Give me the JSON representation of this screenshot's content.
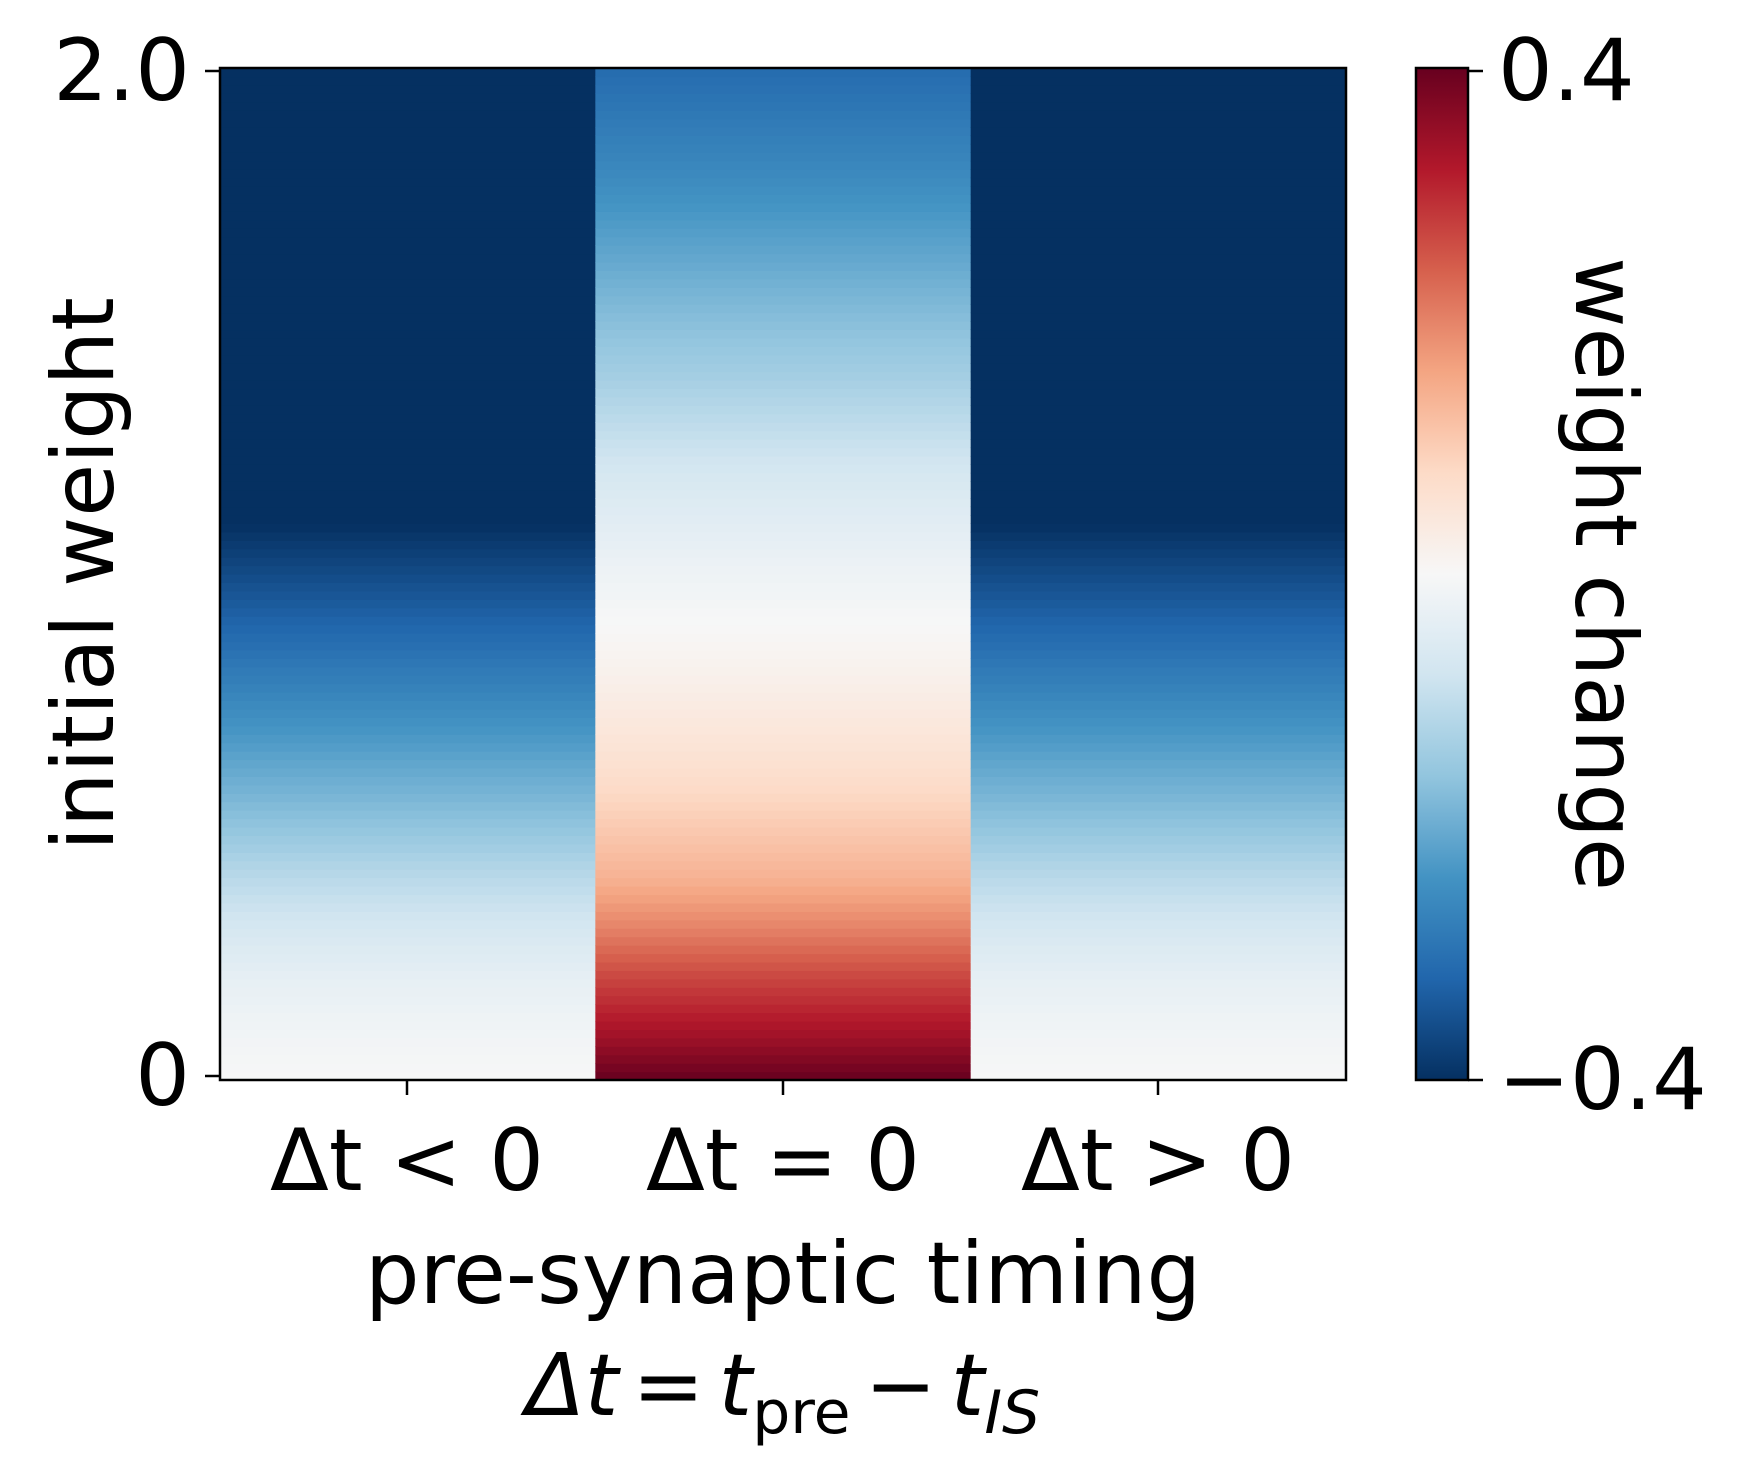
{
  "chart_data": {
    "type": "heatmap",
    "colormap": "RdBu_r",
    "x_categories": [
      "Δt < 0",
      "Δt = 0",
      "Δt > 0"
    ],
    "y_ticks": [
      "0",
      "2.0"
    ],
    "ylim": [
      0,
      2.0
    ],
    "xlabel_line1": "pre-synaptic timing",
    "xlabel_line2": {
      "lhs": "Δt",
      "eq": "=",
      "t1": "t",
      "sub1": "pre",
      "minus": "−",
      "t2": "t",
      "sub2": "IS"
    },
    "ylabel": "initial weight",
    "colorbar": {
      "label": "weight change",
      "min": -0.4,
      "max": 0.4,
      "tick_min_label": "−0.4",
      "tick_max_label": "0.4"
    },
    "columns": [
      {
        "category": "Δt < 0",
        "profile": [
          {
            "w": 0.0,
            "v": 0.0
          },
          {
            "w": 0.1,
            "v": -0.015
          },
          {
            "w": 0.2,
            "v": -0.035
          },
          {
            "w": 0.3,
            "v": -0.07
          },
          {
            "w": 0.4,
            "v": -0.11
          },
          {
            "w": 0.5,
            "v": -0.16
          },
          {
            "w": 0.6,
            "v": -0.2
          },
          {
            "w": 0.7,
            "v": -0.24
          },
          {
            "w": 0.8,
            "v": -0.28
          },
          {
            "w": 0.9,
            "v": -0.32
          },
          {
            "w": 1.0,
            "v": -0.36
          },
          {
            "w": 1.1,
            "v": -0.4
          },
          {
            "w": 2.0,
            "v": -0.4
          }
        ]
      },
      {
        "category": "Δt = 0",
        "profile": [
          {
            "w": 0.0,
            "v": 0.4
          },
          {
            "w": 0.1,
            "v": 0.33
          },
          {
            "w": 0.2,
            "v": 0.27
          },
          {
            "w": 0.3,
            "v": 0.2
          },
          {
            "w": 0.4,
            "v": 0.14
          },
          {
            "w": 0.6,
            "v": 0.07
          },
          {
            "w": 0.8,
            "v": 0.02
          },
          {
            "w": 1.0,
            "v": -0.02
          },
          {
            "w": 1.2,
            "v": -0.07
          },
          {
            "w": 1.4,
            "v": -0.14
          },
          {
            "w": 1.6,
            "v": -0.2
          },
          {
            "w": 1.8,
            "v": -0.26
          },
          {
            "w": 2.0,
            "v": -0.31
          }
        ]
      },
      {
        "category": "Δt > 0",
        "profile": [
          {
            "w": 0.0,
            "v": 0.0
          },
          {
            "w": 0.1,
            "v": -0.015
          },
          {
            "w": 0.2,
            "v": -0.035
          },
          {
            "w": 0.3,
            "v": -0.07
          },
          {
            "w": 0.4,
            "v": -0.11
          },
          {
            "w": 0.5,
            "v": -0.16
          },
          {
            "w": 0.6,
            "v": -0.2
          },
          {
            "w": 0.7,
            "v": -0.24
          },
          {
            "w": 0.8,
            "v": -0.28
          },
          {
            "w": 0.9,
            "v": -0.32
          },
          {
            "w": 1.0,
            "v": -0.36
          },
          {
            "w": 1.1,
            "v": -0.4
          },
          {
            "w": 2.0,
            "v": -0.4
          }
        ]
      }
    ]
  }
}
